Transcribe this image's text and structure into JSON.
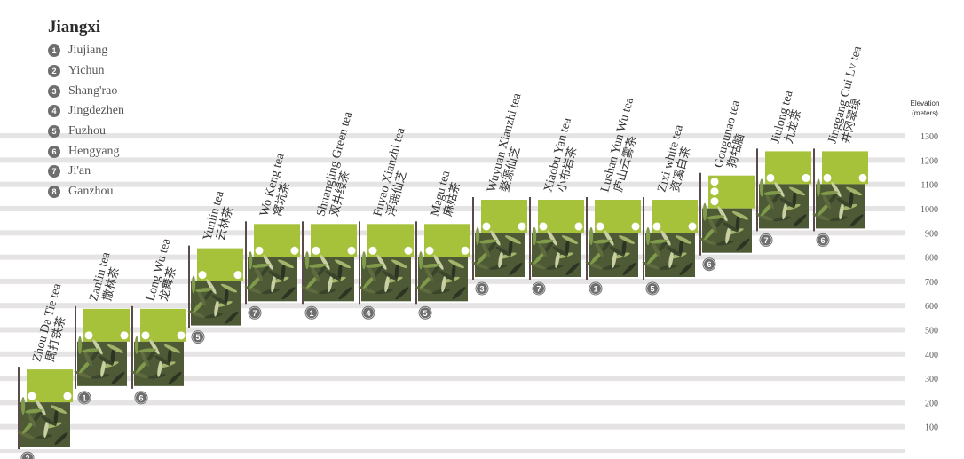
{
  "legend": {
    "title": "Jiangxi",
    "items": [
      {
        "num": "1",
        "label": "Jiujiang"
      },
      {
        "num": "2",
        "label": "Yichun"
      },
      {
        "num": "3",
        "label": "Shang'rao"
      },
      {
        "num": "4",
        "label": "Jingdezhen"
      },
      {
        "num": "5",
        "label": "Fuzhou"
      },
      {
        "num": "6",
        "label": "Hengyang"
      },
      {
        "num": "7",
        "label": "Ji'an"
      },
      {
        "num": "8",
        "label": "Ganzhou"
      }
    ]
  },
  "colors": {
    "band": "#e6e3e5",
    "band_line": "#c9c5c8",
    "green": "#a6c23a",
    "stem": "#5a4a4a",
    "marker": "#6e6e6e",
    "text": "#333333"
  },
  "chart_data": {
    "type": "bar",
    "ylabel": "Elevation\n(meters)",
    "ylim": [
      0,
      1300
    ],
    "yticks": [
      100,
      200,
      300,
      400,
      500,
      600,
      700,
      800,
      900,
      1000,
      1100,
      1200,
      1300
    ],
    "categories": [
      {
        "en": "Zhou Da Tie tea",
        "zh": "周打铁茶",
        "region": "2",
        "dots": 2
      },
      {
        "en": "Zanlin tea",
        "zh": "撒林茶",
        "region": "1",
        "dots": 2
      },
      {
        "en": "Long Wu tea",
        "zh": "龙舞茶",
        "region": "6",
        "dots": 2
      },
      {
        "en": "Yunlin tea",
        "zh": "云林茶",
        "region": "5",
        "dots": 2
      },
      {
        "en": "Wo Keng tea",
        "zh": "窝坑茶",
        "region": "7",
        "dots": 2
      },
      {
        "en": "Shuangjing Green tea",
        "zh": "双井绿茶",
        "region": "1",
        "dots": 2
      },
      {
        "en": "Fuyao Xianzhi tea",
        "zh": "浮瑶仙芝",
        "region": "4",
        "dots": 2
      },
      {
        "en": "Magu tea",
        "zh": "麻姑茶",
        "region": "5",
        "dots": 2
      },
      {
        "en": "Wuyuan Xianzhi tea",
        "zh": "婺源仙芝",
        "region": "3",
        "dots": 2
      },
      {
        "en": "Xiaobu Yan tea",
        "zh": "小布岩茶",
        "region": "7",
        "dots": 2
      },
      {
        "en": "Lushan Yun Wu tea",
        "zh": "庐山云雾茶",
        "region": "1",
        "dots": 2
      },
      {
        "en": "Zixi white tea",
        "zh": "资溪白茶",
        "region": "5",
        "dots": 2
      },
      {
        "en": "Gougunao tea",
        "zh": "狗牯脑",
        "region": "6",
        "dots": 3
      },
      {
        "en": "Jiulong tea",
        "zh": "九龙茶",
        "region": "7",
        "dots": 2
      },
      {
        "en": "Jinggang Cui Lv tea",
        "zh": "井冈翠绿",
        "region": "6",
        "dots": 2
      }
    ],
    "values": [
      300,
      550,
      550,
      800,
      900,
      900,
      900,
      900,
      1000,
      1000,
      1000,
      1000,
      1100,
      1200,
      1200
    ]
  }
}
